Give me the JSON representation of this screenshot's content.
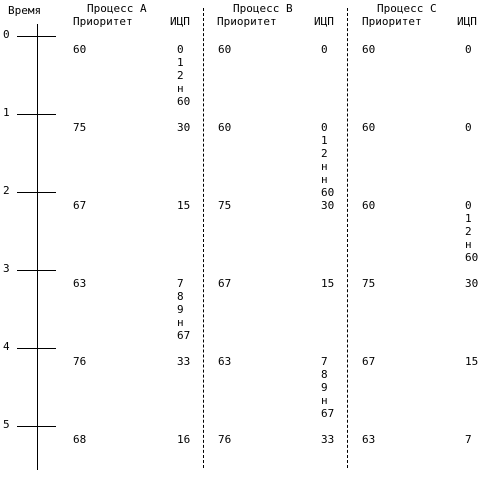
{
  "time_header": "Время",
  "processes": [
    {
      "title": "Процесс A",
      "priority_label": "Приоритет",
      "icp_label": "ИЦП"
    },
    {
      "title": "Процесс B",
      "priority_label": "Приоритет",
      "icp_label": "ИЦП"
    },
    {
      "title": "Процесс C",
      "priority_label": "Приоритет",
      "icp_label": "ИЦП"
    }
  ],
  "time_ticks": [
    "0",
    "1",
    "2",
    "3",
    "4",
    "5"
  ],
  "rows": [
    {
      "a_pri": "60",
      "a_icp": "0\n1\n2\nн\n60",
      "b_pri": "60",
      "b_icp": "0",
      "c_pri": "60",
      "c_icp": "0"
    },
    {
      "a_pri": "75",
      "a_icp": "30",
      "b_pri": "60",
      "b_icp": "0\n1\n2\nн\nн\n60",
      "c_pri": "60",
      "c_icp": "0"
    },
    {
      "a_pri": "67",
      "a_icp": "15",
      "b_pri": "75",
      "b_icp": "30",
      "c_pri": "60",
      "c_icp": "0\n1\n2\nн\n60"
    },
    {
      "a_pri": "63",
      "a_icp": "7\n8\n9\nн\n67",
      "b_pri": "67",
      "b_icp": "15",
      "c_pri": "75",
      "c_icp": "30"
    },
    {
      "a_pri": "76",
      "a_icp": "33",
      "b_pri": "63",
      "b_icp": "7\n8\n9\nн\n67",
      "c_pri": "67",
      "c_icp": "15"
    },
    {
      "a_pri": "68",
      "a_icp": "16",
      "b_pri": "76",
      "b_icp": "33",
      "c_pri": "63",
      "c_icp": "7"
    }
  ]
}
